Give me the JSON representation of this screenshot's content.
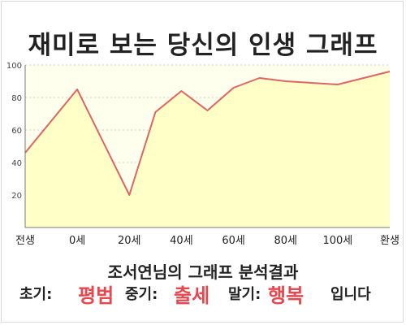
{
  "chart_data": {
    "type": "area",
    "title": "재미로 보는 당신의 인생 그래프",
    "x_labels": [
      "전생",
      "0세",
      "20세",
      "40세",
      "60세",
      "80세",
      "100세",
      "환생"
    ],
    "x": [
      -20,
      0,
      20,
      30,
      40,
      50,
      60,
      70,
      80,
      100,
      120
    ],
    "y": [
      46,
      85,
      20,
      71,
      84,
      72,
      86,
      92,
      90,
      88,
      96
    ],
    "ylim": [
      0,
      100
    ],
    "y_ticks": [
      20,
      40,
      60,
      80,
      100
    ],
    "grid": "horizontal dotted",
    "colors": {
      "line": "#e06464",
      "fill": "#ffffc8",
      "plot_bg": "#ffffee"
    }
  },
  "result": {
    "heading": "조서연님의 그래프 분석결과",
    "early_label": "초기:",
    "early_value": "평범",
    "middle_label": "중기:",
    "middle_value": "출세",
    "late_label": "말기:",
    "late_value": "행복",
    "suffix": "입니다"
  }
}
